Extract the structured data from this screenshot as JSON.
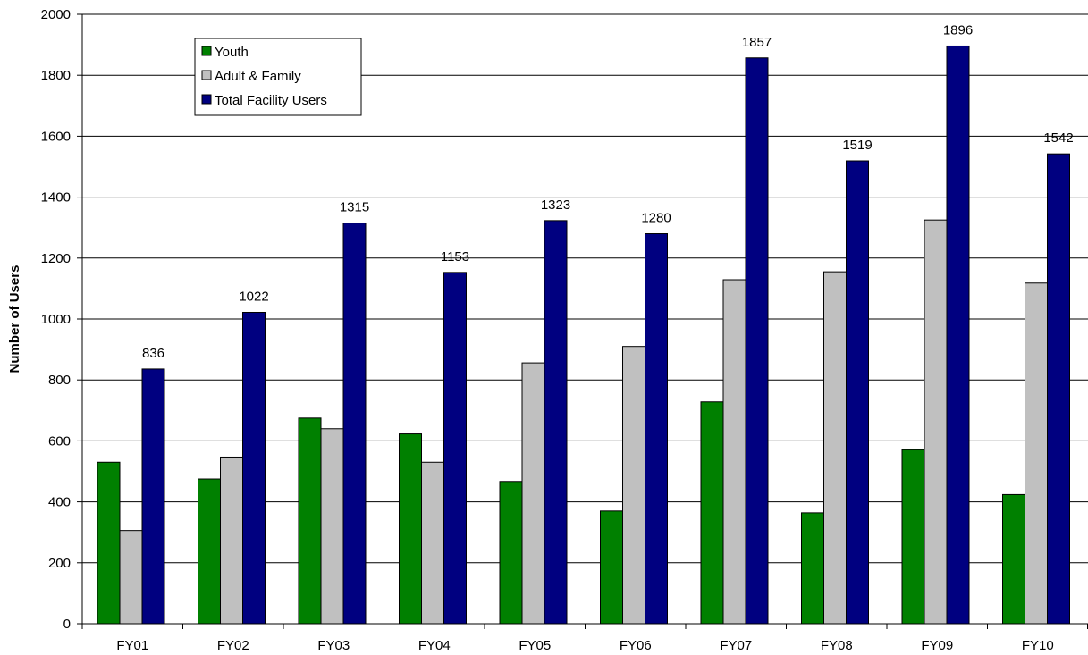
{
  "chart_data": {
    "type": "bar",
    "title": "",
    "xlabel": "",
    "ylabel": "Number of Users",
    "ylim": [
      0,
      2000
    ],
    "yticks": [
      0,
      200,
      400,
      600,
      800,
      1000,
      1200,
      1400,
      1600,
      1800,
      2000
    ],
    "grid": true,
    "legend_position": "top-left",
    "categories": [
      "FY01",
      "FY02",
      "FY03",
      "FY04",
      "FY05",
      "FY06",
      "FY07",
      "FY08",
      "FY09",
      "FY10"
    ],
    "series": [
      {
        "name": "Youth",
        "color": "#008000",
        "values": [
          530,
          475,
          675,
          623,
          467,
          370,
          728,
          364,
          571,
          424
        ]
      },
      {
        "name": "Adult & Family",
        "color": "#c0c0c0",
        "values": [
          306,
          547,
          640,
          530,
          856,
          910,
          1129,
          1155,
          1325,
          1118
        ]
      },
      {
        "name": "Total Facility Users",
        "color": "#000080",
        "values": [
          836,
          1022,
          1315,
          1153,
          1323,
          1280,
          1857,
          1519,
          1896,
          1542
        ],
        "data_labels": [
          "836",
          "1022",
          "1315",
          "1153",
          "1323",
          "1280",
          "1857",
          "1519",
          "1896",
          "1542"
        ]
      }
    ]
  }
}
